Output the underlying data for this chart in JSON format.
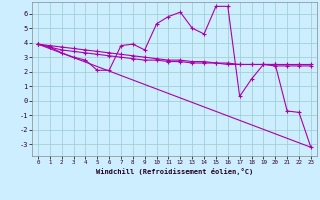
{
  "xlabel": "Windchill (Refroidissement éolien,°C)",
  "background_color": "#cceeff",
  "grid_color": "#99cccc",
  "line_color": "#aa00aa",
  "xlim": [
    -0.5,
    23.5
  ],
  "ylim": [
    -3.8,
    6.8
  ],
  "xticks": [
    0,
    1,
    2,
    3,
    4,
    5,
    6,
    7,
    8,
    9,
    10,
    11,
    12,
    13,
    14,
    15,
    16,
    17,
    18,
    19,
    20,
    21,
    22,
    23
  ],
  "yticks": [
    -3,
    -2,
    -1,
    0,
    1,
    2,
    3,
    4,
    5,
    6
  ],
  "line1_x": [
    0,
    1,
    2,
    3,
    4,
    5,
    6,
    7,
    8,
    9,
    10,
    11,
    12,
    13,
    14,
    15,
    16,
    17,
    18,
    19,
    20,
    21,
    22,
    23
  ],
  "line1_y": [
    3.9,
    3.7,
    3.3,
    3.0,
    2.8,
    2.1,
    2.1,
    3.8,
    3.9,
    3.5,
    5.3,
    5.8,
    6.1,
    5.0,
    4.6,
    6.5,
    6.5,
    0.3,
    1.5,
    2.5,
    2.5,
    -0.7,
    -0.8,
    -3.2
  ],
  "line2_x": [
    0,
    1,
    2,
    3,
    4,
    5,
    6,
    7,
    8,
    9,
    10,
    11,
    12,
    13,
    14,
    15,
    16,
    17,
    18,
    19,
    20,
    21,
    22,
    23
  ],
  "line2_y": [
    3.9,
    3.8,
    3.7,
    3.6,
    3.5,
    3.4,
    3.3,
    3.2,
    3.1,
    3.0,
    2.9,
    2.8,
    2.8,
    2.7,
    2.7,
    2.6,
    2.6,
    2.5,
    2.5,
    2.5,
    2.5,
    2.5,
    2.5,
    2.5
  ],
  "line3_x": [
    0,
    23
  ],
  "line3_y": [
    3.9,
    -3.2
  ],
  "line4_x": [
    0,
    1,
    2,
    3,
    4,
    5,
    6,
    7,
    8,
    9,
    10,
    11,
    12,
    13,
    14,
    15,
    16,
    17,
    18,
    19,
    20,
    21,
    22,
    23
  ],
  "line4_y": [
    3.9,
    3.7,
    3.5,
    3.4,
    3.3,
    3.2,
    3.1,
    3.0,
    2.9,
    2.8,
    2.8,
    2.7,
    2.7,
    2.6,
    2.6,
    2.6,
    2.5,
    2.5,
    2.5,
    2.5,
    2.4,
    2.4,
    2.4,
    2.4
  ]
}
